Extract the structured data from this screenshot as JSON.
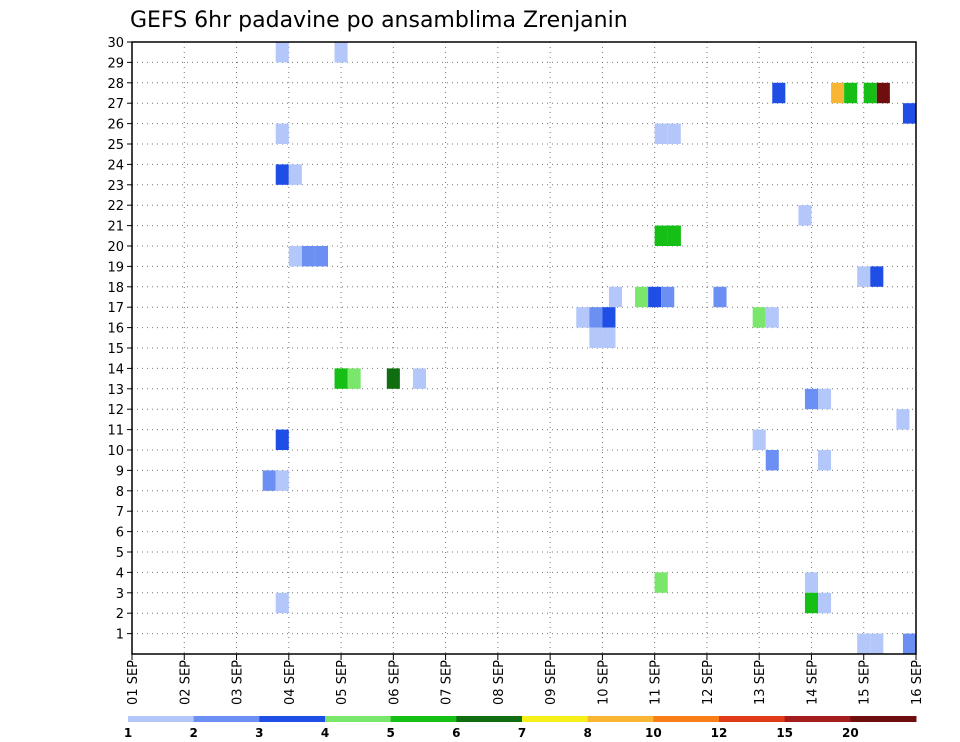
{
  "chart_data": {
    "type": "heatmap",
    "title": "GEFS 6hr padavine po ansamblima Zrenjanin",
    "x_ticks": [
      "01 SEP",
      "02 SEP",
      "03 SEP",
      "04 SEP",
      "05 SEP",
      "06 SEP",
      "07 SEP",
      "08 SEP",
      "09 SEP",
      "10 SEP",
      "11 SEP",
      "12 SEP",
      "13 SEP",
      "14 SEP",
      "15 SEP",
      "16 SEP"
    ],
    "x_steps_per_day": 4,
    "x_range": [
      0,
      60
    ],
    "y_ticks": [
      1,
      2,
      3,
      4,
      5,
      6,
      7,
      8,
      9,
      10,
      11,
      12,
      13,
      14,
      15,
      16,
      17,
      18,
      19,
      20,
      21,
      22,
      23,
      24,
      25,
      26,
      27,
      28,
      29,
      30
    ],
    "y_range": [
      0,
      30
    ],
    "grid": true,
    "colorbar": {
      "labels": [
        "1",
        "2",
        "3",
        "4",
        "5",
        "6",
        "7",
        "8",
        "10",
        "12",
        "15",
        "20"
      ],
      "colors": [
        "#b4c7fa",
        "#6b8ff2",
        "#1e4ee6",
        "#7ae66b",
        "#16bf16",
        "#106e10",
        "#f7f018",
        "#f8b634",
        "#f77e18",
        "#e03a18",
        "#a31d1d",
        "#6e0e0e"
      ]
    },
    "cells": [
      {
        "x": 11.5,
        "y": 29.5,
        "c": 0
      },
      {
        "x": 16,
        "y": 29.5,
        "c": 0
      },
      {
        "x": 49.5,
        "y": 27.5,
        "c": 2
      },
      {
        "x": 54,
        "y": 27.5,
        "c": 7
      },
      {
        "x": 55,
        "y": 27.5,
        "c": 4
      },
      {
        "x": 56.5,
        "y": 27.5,
        "c": 4
      },
      {
        "x": 57.5,
        "y": 27.5,
        "c": 11
      },
      {
        "x": 59.5,
        "y": 26.5,
        "c": 2
      },
      {
        "x": 11.5,
        "y": 25.5,
        "c": 0
      },
      {
        "x": 40.5,
        "y": 25.5,
        "c": 0
      },
      {
        "x": 41.5,
        "y": 25.5,
        "c": 0
      },
      {
        "x": 11.5,
        "y": 23.5,
        "c": 2
      },
      {
        "x": 12.5,
        "y": 23.5,
        "c": 0
      },
      {
        "x": 51.5,
        "y": 21.5,
        "c": 0
      },
      {
        "x": 40.5,
        "y": 20.5,
        "c": 4
      },
      {
        "x": 41.5,
        "y": 20.5,
        "c": 4
      },
      {
        "x": 41.5,
        "y": 20.5,
        "c": 4
      },
      {
        "x": 12.5,
        "y": 19.5,
        "c": 0
      },
      {
        "x": 13.5,
        "y": 19.5,
        "c": 1
      },
      {
        "x": 14.5,
        "y": 19.5,
        "c": 1
      },
      {
        "x": 56,
        "y": 18.5,
        "c": 0
      },
      {
        "x": 57,
        "y": 18.5,
        "c": 2
      },
      {
        "x": 37,
        "y": 17.5,
        "c": 0
      },
      {
        "x": 39,
        "y": 17.5,
        "c": 3
      },
      {
        "x": 40,
        "y": 17.5,
        "c": 2
      },
      {
        "x": 41,
        "y": 17.5,
        "c": 1
      },
      {
        "x": 45,
        "y": 17.5,
        "c": 1
      },
      {
        "x": 34.5,
        "y": 16.5,
        "c": 0
      },
      {
        "x": 35.5,
        "y": 16.5,
        "c": 1
      },
      {
        "x": 36.5,
        "y": 16.5,
        "c": 2
      },
      {
        "x": 48,
        "y": 16.5,
        "c": 3
      },
      {
        "x": 49,
        "y": 16.5,
        "c": 0
      },
      {
        "x": 35.5,
        "y": 15.5,
        "c": 0
      },
      {
        "x": 36.5,
        "y": 15.5,
        "c": 0
      },
      {
        "x": 16,
        "y": 13.5,
        "c": 4
      },
      {
        "x": 17,
        "y": 13.5,
        "c": 3
      },
      {
        "x": 20,
        "y": 13.5,
        "c": 5
      },
      {
        "x": 22,
        "y": 13.5,
        "c": 0
      },
      {
        "x": 52,
        "y": 12.5,
        "c": 1
      },
      {
        "x": 53,
        "y": 12.5,
        "c": 0
      },
      {
        "x": 59,
        "y": 11.5,
        "c": 0
      },
      {
        "x": 11.5,
        "y": 10.5,
        "c": 2
      },
      {
        "x": 48,
        "y": 10.5,
        "c": 0
      },
      {
        "x": 49,
        "y": 9.5,
        "c": 1
      },
      {
        "x": 53,
        "y": 9.5,
        "c": 0
      },
      {
        "x": 10.5,
        "y": 8.5,
        "c": 1
      },
      {
        "x": 11.5,
        "y": 8.5,
        "c": 0
      },
      {
        "x": 40.5,
        "y": 3.5,
        "c": 3
      },
      {
        "x": 52,
        "y": 3.5,
        "c": 0
      },
      {
        "x": 11.5,
        "y": 2.5,
        "c": 0
      },
      {
        "x": 52,
        "y": 2.5,
        "c": 4
      },
      {
        "x": 53,
        "y": 2.5,
        "c": 0
      },
      {
        "x": 56,
        "y": 0.5,
        "c": 0
      },
      {
        "x": 57,
        "y": 0.5,
        "c": 0
      },
      {
        "x": 59.5,
        "y": 0.5,
        "c": 1
      }
    ]
  }
}
